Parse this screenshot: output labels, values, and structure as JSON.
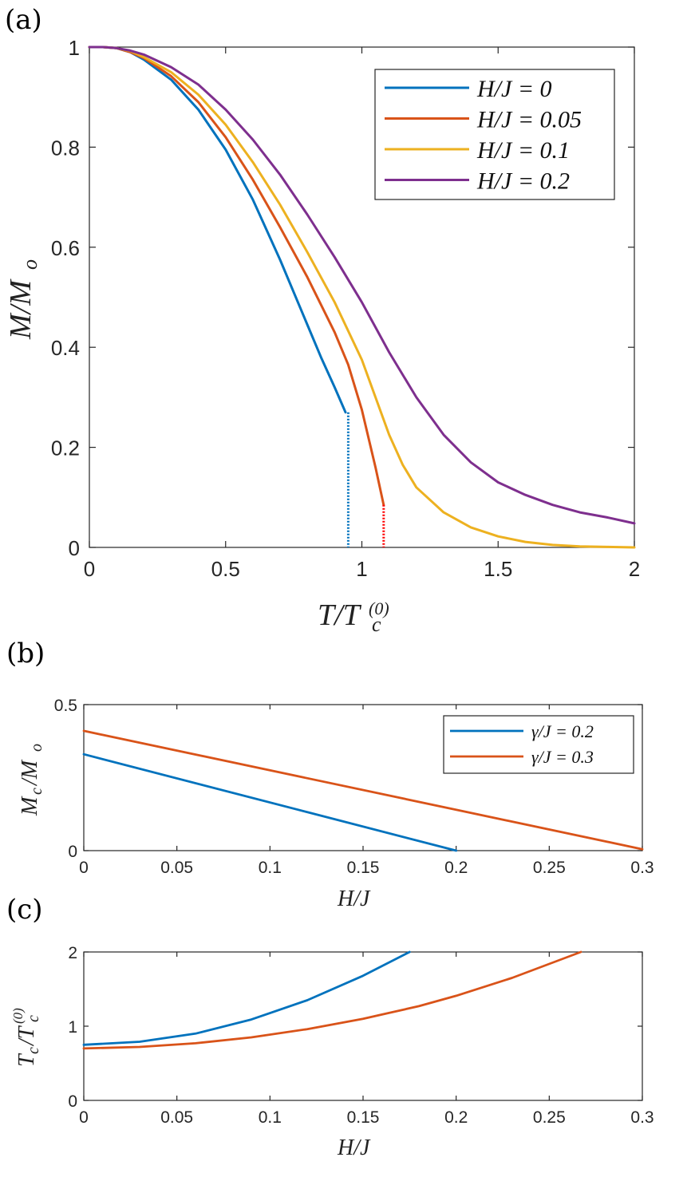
{
  "chart_data": [
    {
      "type": "line",
      "panel": "(a)",
      "xlabel": "T/T_c^(0)",
      "ylabel": "M/M_o",
      "xlim": [
        0,
        2
      ],
      "ylim": [
        0,
        1
      ],
      "xticks": [
        "0",
        "0.5",
        "1",
        "1.5",
        "2"
      ],
      "yticks": [
        "0",
        "0.2",
        "0.4",
        "0.6",
        "0.8",
        "1"
      ],
      "legend_position": "top-right",
      "series": [
        {
          "name": "H/J = 0",
          "color": "#0072BD",
          "x": [
            0,
            0.05,
            0.1,
            0.15,
            0.2,
            0.3,
            0.4,
            0.5,
            0.6,
            0.7,
            0.8,
            0.85,
            0.9,
            0.92,
            0.94
          ],
          "y": [
            1,
            1,
            0.998,
            0.99,
            0.975,
            0.935,
            0.875,
            0.795,
            0.695,
            0.575,
            0.445,
            0.38,
            0.32,
            0.295,
            0.27
          ],
          "dotted_drop": {
            "x": 0.95,
            "from": 0.27,
            "to": 0,
            "color": "#0072BD"
          }
        },
        {
          "name": "H/J = 0.05",
          "color": "#D95319",
          "x": [
            0,
            0.05,
            0.1,
            0.15,
            0.2,
            0.3,
            0.4,
            0.5,
            0.6,
            0.7,
            0.8,
            0.9,
            0.95,
            1.0,
            1.05,
            1.08
          ],
          "y": [
            1,
            1,
            0.998,
            0.99,
            0.978,
            0.942,
            0.89,
            0.82,
            0.735,
            0.64,
            0.54,
            0.43,
            0.365,
            0.275,
            0.16,
            0.085
          ],
          "dotted_drop": {
            "x": 1.08,
            "from": 0.085,
            "to": 0,
            "color": "#FF0000"
          }
        },
        {
          "name": "H/J = 0.1",
          "color": "#EDB120",
          "x": [
            0,
            0.05,
            0.1,
            0.15,
            0.2,
            0.3,
            0.4,
            0.5,
            0.6,
            0.7,
            0.8,
            0.9,
            1.0,
            1.05,
            1.1,
            1.15,
            1.2,
            1.3,
            1.4,
            1.5,
            1.6,
            1.7,
            1.8,
            1.9,
            2.0
          ],
          "y": [
            1,
            1,
            0.998,
            0.992,
            0.98,
            0.95,
            0.905,
            0.845,
            0.77,
            0.685,
            0.59,
            0.49,
            0.375,
            0.3,
            0.225,
            0.165,
            0.12,
            0.07,
            0.04,
            0.022,
            0.011,
            0.005,
            0.002,
            0.001,
            0
          ]
        },
        {
          "name": "H/J = 0.2",
          "color": "#7E2F8E",
          "x": [
            0,
            0.05,
            0.1,
            0.15,
            0.2,
            0.3,
            0.4,
            0.5,
            0.6,
            0.7,
            0.8,
            0.9,
            1.0,
            1.1,
            1.2,
            1.3,
            1.4,
            1.5,
            1.6,
            1.7,
            1.8,
            1.9,
            2.0
          ],
          "y": [
            1,
            1,
            0.998,
            0.993,
            0.985,
            0.96,
            0.925,
            0.875,
            0.815,
            0.745,
            0.665,
            0.58,
            0.49,
            0.39,
            0.3,
            0.225,
            0.17,
            0.13,
            0.105,
            0.085,
            0.07,
            0.06,
            0.048
          ]
        }
      ]
    },
    {
      "type": "line",
      "panel": "(b)",
      "xlabel": "H/J",
      "ylabel": "M_c/M_o",
      "xlim": [
        0,
        0.3
      ],
      "ylim": [
        0,
        0.5
      ],
      "xticks": [
        "0",
        "0.05",
        "0.1",
        "0.15",
        "0.2",
        "0.25",
        "0.3"
      ],
      "yticks": [
        "0",
        "0.5"
      ],
      "legend_position": "top-right",
      "series": [
        {
          "name": "γ/J = 0.2",
          "color": "#0072BD",
          "x": [
            0,
            0.2
          ],
          "y": [
            0.33,
            0
          ]
        },
        {
          "name": "γ/J = 0.3",
          "color": "#D95319",
          "x": [
            0,
            0.3
          ],
          "y": [
            0.41,
            0.005
          ]
        }
      ]
    },
    {
      "type": "line",
      "panel": "(c)",
      "xlabel": "H/J",
      "ylabel": "T_c/T_c^(0)",
      "xlim": [
        0,
        0.3
      ],
      "ylim": [
        0,
        2
      ],
      "xticks": [
        "0",
        "0.05",
        "0.1",
        "0.15",
        "0.2",
        "0.25",
        "0.3"
      ],
      "yticks": [
        "0",
        "1",
        "2"
      ],
      "series": [
        {
          "name": "γ/J = 0.2",
          "color": "#0072BD",
          "x": [
            0,
            0.03,
            0.06,
            0.09,
            0.12,
            0.15,
            0.175
          ],
          "y": [
            0.75,
            0.79,
            0.9,
            1.09,
            1.35,
            1.68,
            2.0
          ]
        },
        {
          "name": "γ/J = 0.3",
          "color": "#D95319",
          "x": [
            0,
            0.03,
            0.06,
            0.09,
            0.12,
            0.15,
            0.18,
            0.2,
            0.23,
            0.267
          ],
          "y": [
            0.7,
            0.72,
            0.77,
            0.85,
            0.96,
            1.1,
            1.27,
            1.41,
            1.65,
            2.0
          ]
        }
      ]
    }
  ]
}
